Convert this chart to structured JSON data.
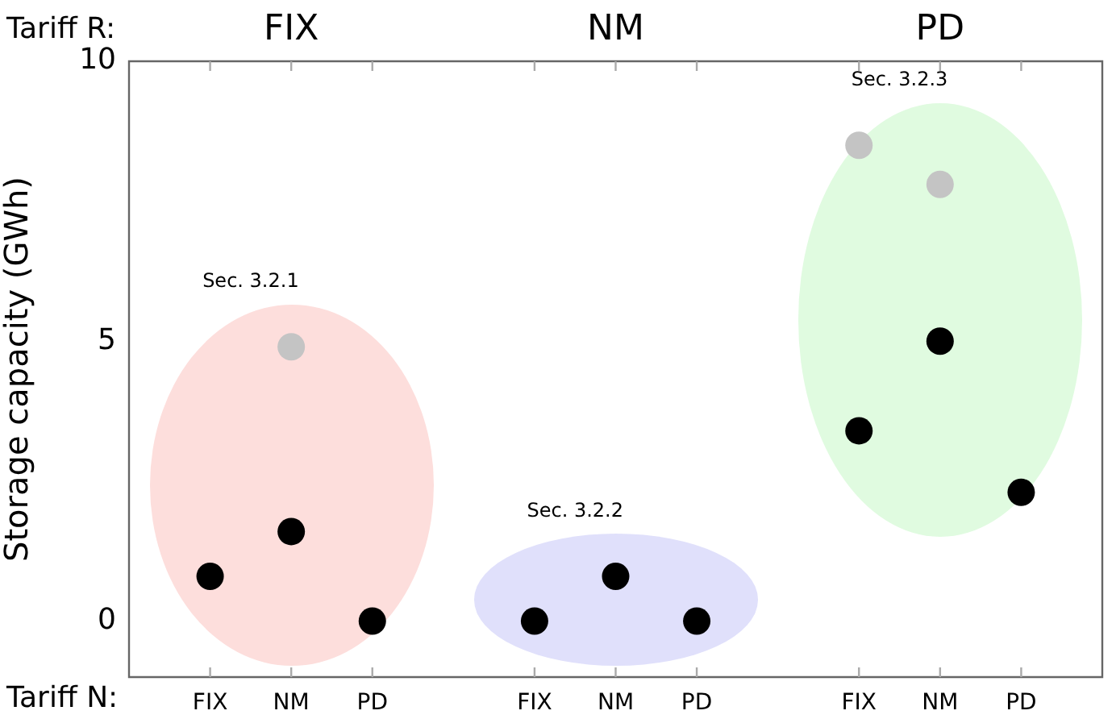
{
  "chart_data": {
    "type": "scatter",
    "ylabel": "Storage capacity (GWh)",
    "xlabel": "Tariff N:",
    "categories": [
      null,
      "FIX",
      "NM",
      "PD",
      null,
      "FIX",
      "NM",
      "PD",
      null,
      "FIX",
      "NM",
      "PD",
      null
    ],
    "series": [
      {
        "color": "#c4c4c4",
        "values": [
          null,
          null,
          4.9,
          null,
          null,
          null,
          null,
          null,
          null,
          8.5,
          7.8,
          null,
          null
        ]
      },
      {
        "color": "#000000",
        "values": [
          null,
          0.8,
          1.6,
          0,
          null,
          0,
          0.8,
          0,
          null,
          3.4,
          5.0,
          2.3,
          null
        ]
      }
    ],
    "annotations": [
      "Tariff R:",
      "FIX",
      "NM",
      "PD",
      "Sec. 3.2.1",
      "Sec. 3.2.2",
      "Sec. 3.2.3"
    ],
    "ylim": [
      -1,
      10
    ],
    "yticks": [
      0,
      5,
      10
    ],
    "grid": false,
    "legend": false,
    "marker": "circle"
  }
}
